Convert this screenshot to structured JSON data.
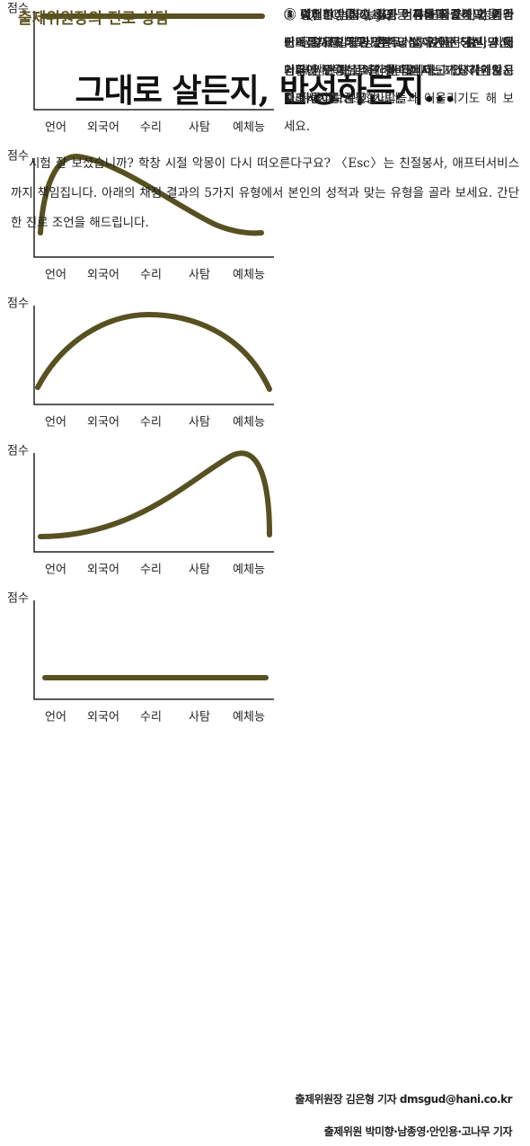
{
  "header": {
    "kicker": "출제위원장의 진로 상담",
    "title": "그대로 살든지, 반성하든지…"
  },
  "intro": "시험 잘 보셨습니까? 학창 시절 악몽이 다시 떠오른다구요? 〈Esc〉는 친절봉사, 애프터서비스까지 책임집니다. 아래의 채점 결과의 5가지 유형에서 본인의 성적과 맞는 유형을 골라 보세요. 간단한 진로 조언을 해드립니다.",
  "panels": [
    {
      "y_label": "점수",
      "categories": [
        "언어",
        "외국어",
        "수리",
        "사탐",
        "예체능"
      ],
      "text": "① IQ, EQ, NQ, JQ 등 지성과 감성, 성품과 잔머리까지 두루 갖추고 살아가는 당신, 지금처럼만 쭈욱, 살아가면 됩니다."
    },
    {
      "y_label": "점수",
      "categories": [
        "언어",
        "외국어",
        "수리",
        "사탐",
        "예체능"
      ],
      "text": "② 탁월한 언어 능력과 이 덕분에 원만한 인간관계를 유지하고 있는 당신, 가끔은 수다와 뒷담화에 소중한 시간을 허비하고 있지는 않은지 뒤돌아보시길…."
    },
    {
      "y_label": "점수",
      "categories": [
        "언어",
        "외국어",
        "수리",
        "사탐",
        "예체능"
      ],
      "text": "③ 여전히 녹슬지 않은 머리를 자랑하며, 외국어 공부 등 자기개발도 부지런히 하는 당신, 너무 앞만 보고 달리는 건 아닌가요? 가끔은 텔레비전도 보고 사람들과 어울리기도 해 보세요."
    },
    {
      "y_label": "점수",
      "categories": [
        "언어",
        "외국어",
        "수리",
        "사탐",
        "예체능"
      ],
      "text": "④ 슈퍼주니어의 13명 이름을 줄줄이 외울 정도로 젊고 발랄한 감각의 소유자인 당신, 이제 인터넷 연예뉴스의 바다에서 그만 헤엄치고 나오시기를 권유합니다."
    },
    {
      "y_label": "점수",
      "categories": [
        "언어",
        "외국어",
        "수리",
        "사탐",
        "예체능"
      ],
      "text": "⑤ 텔레비전을 끄세요, 컴퓨터를 끄세요, 게임기도 끄세요. 그냥 우두커니 앉아서 잠시만 내가 왜 사는지, 무슨 재미로 사는지 생각해보시길 바랍니다."
    }
  ],
  "credits": [
    "출제위원장 김은형 기자 dmsgud@hani.co.kr",
    "출제위원 박미향·남종영·안인용·고나무 기자"
  ]
}
